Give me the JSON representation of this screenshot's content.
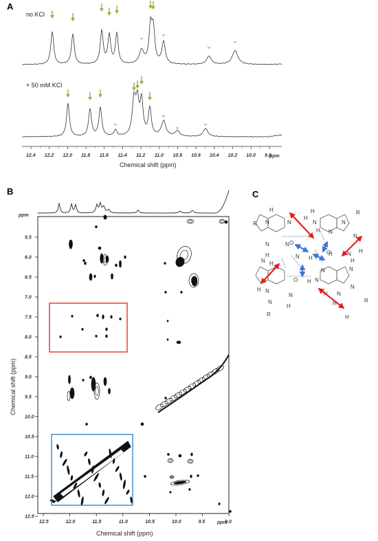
{
  "panels": {
    "a": "A",
    "b": "B",
    "c": "C"
  },
  "panel_a": {
    "conditions": [
      "no KCl",
      "+ 50 mM KCl"
    ],
    "xlabel": "Chemical shift (ppm)",
    "unit": "ppm",
    "ticks": [
      "12.4",
      "12.2",
      "12.0",
      "11.8",
      "11.6",
      "11.4",
      "11.2",
      "11.0",
      "10.8",
      "10.6",
      "10.4",
      "10.2",
      "10.0",
      "9.8"
    ],
    "arrow_color": "#8db43c"
  },
  "panel_b": {
    "xlabel": "Chemical shift (ppm)",
    "ylabel": "Chemical shift (ppm)",
    "unit": "ppm",
    "x_ticks": [
      "12.5",
      "12.0",
      "11.5",
      "11.0",
      "10.5",
      "10.0",
      "9.5",
      "9.0"
    ],
    "y_ticks": [
      "5.5",
      "6.0",
      "6.5",
      "7.0",
      "7.5",
      "8.0",
      "8.5",
      "9.0",
      "9.5",
      "10.0",
      "10.5",
      "11.0",
      "11.5",
      "12.0",
      "12.5"
    ],
    "red_box_color": "#e02020",
    "blue_box_color": "#2a7fc0"
  },
  "panel_c": {
    "atom_N": "N",
    "atom_H": "H",
    "atom_O": "O",
    "atom_R": "R",
    "group_NH": "N–H",
    "arrow_red": "#e02020",
    "arrow_blue": "#3a78d8"
  }
}
